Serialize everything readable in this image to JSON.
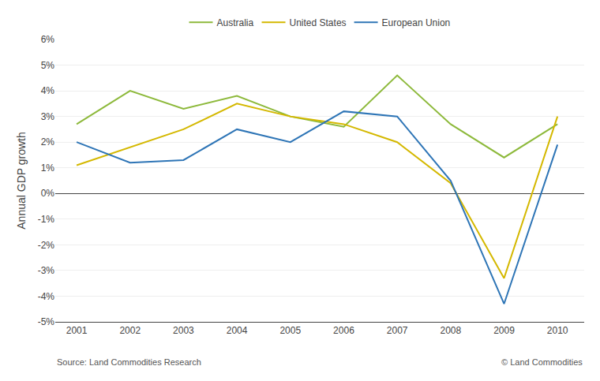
{
  "chart_data": {
    "type": "line",
    "ylabel": "Annual GDP growth",
    "x": [
      2001,
      2002,
      2003,
      2004,
      2005,
      2006,
      2007,
      2008,
      2009,
      2010
    ],
    "series": [
      {
        "name": "Australia",
        "color": "#8DB93B",
        "values": [
          2.7,
          4.0,
          3.3,
          3.8,
          3.0,
          2.6,
          4.6,
          2.7,
          1.4,
          2.7
        ]
      },
      {
        "name": "United States",
        "color": "#D4B800",
        "values": [
          1.1,
          1.8,
          2.5,
          3.5,
          3.0,
          2.7,
          2.0,
          0.4,
          -3.3,
          3.0
        ]
      },
      {
        "name": "European Union",
        "color": "#2E75B6",
        "values": [
          2.0,
          1.2,
          1.3,
          2.5,
          2.0,
          3.2,
          3.0,
          0.5,
          -4.3,
          1.9
        ]
      }
    ],
    "xlim": [
      2000.6,
      2010.5
    ],
    "xticks": [
      2001,
      2002,
      2003,
      2004,
      2005,
      2006,
      2007,
      2008,
      2009,
      2010
    ],
    "ylim": [
      -5,
      6
    ],
    "yticks": [
      {
        "value": -5,
        "label": "-5%"
      },
      {
        "value": -4,
        "label": "-4%"
      },
      {
        "value": -3,
        "label": "-3%"
      },
      {
        "value": -2,
        "label": "-2%"
      },
      {
        "value": -1,
        "label": "-1%"
      },
      {
        "value": 0,
        "label": "0%"
      },
      {
        "value": 1,
        "label": "1%"
      },
      {
        "value": 2,
        "label": "2%"
      },
      {
        "value": 3,
        "label": "3%"
      },
      {
        "value": 4,
        "label": "4%"
      },
      {
        "value": 5,
        "label": "5%"
      },
      {
        "value": 6,
        "label": "6%"
      }
    ],
    "grid": "y",
    "legend": "top",
    "annotations": [
      "Source: Land Commodities Research",
      "© Land Commodities"
    ]
  }
}
